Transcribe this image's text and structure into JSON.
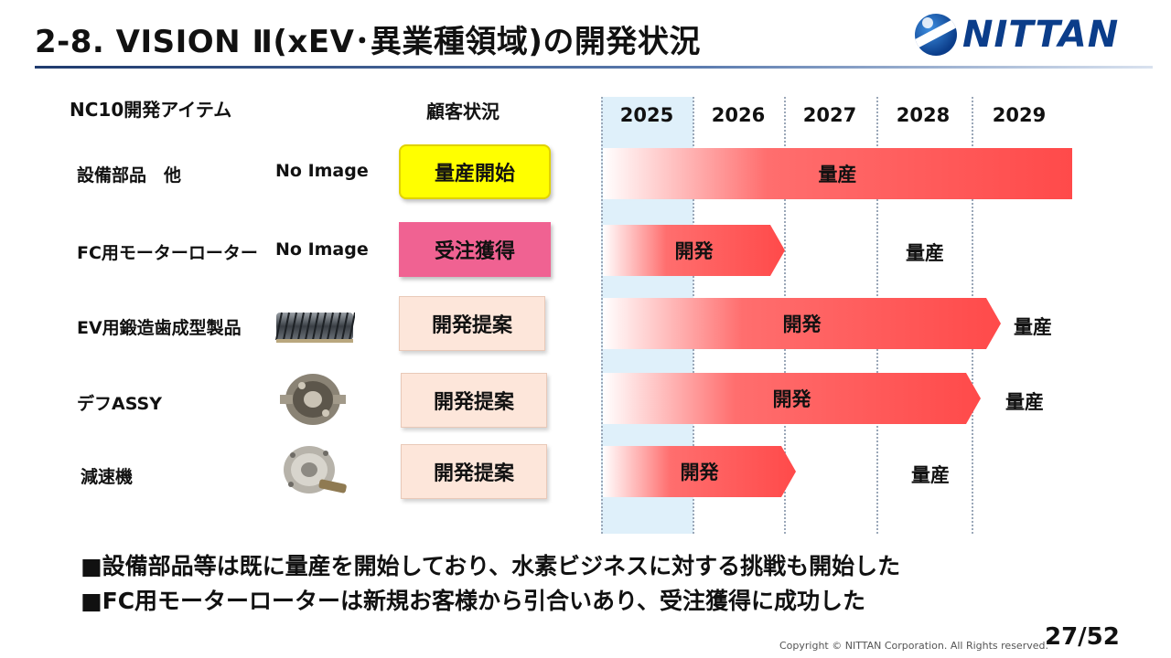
{
  "title": "2-8. VISION Ⅱ(xEV･異業種領域)の開発状況",
  "logo": {
    "text": "NITTAN"
  },
  "headers": {
    "items": "NC10開発アイテム",
    "status": "顧客状況"
  },
  "years": [
    "2025",
    "2026",
    "2027",
    "2028",
    "2029"
  ],
  "rows": [
    {
      "name": "設備部品　他",
      "image_text": "No Image",
      "status": "量産開始",
      "bar_label": "量産",
      "after_label": ""
    },
    {
      "name": "FC用モーターローター",
      "image_text": "No Image",
      "status": "受注獲得",
      "bar_label": "開発",
      "after_label": "量産"
    },
    {
      "name": "EV用鍛造歯成型製品",
      "image_text": "",
      "status": "開発提案",
      "bar_label": "開発",
      "after_label": "量産"
    },
    {
      "name": "デフASSY",
      "image_text": "",
      "status": "開発提案",
      "bar_label": "開発",
      "after_label": "量産"
    },
    {
      "name": "減速機",
      "image_text": "",
      "status": "開発提案",
      "bar_label": "開発",
      "after_label": "量産"
    }
  ],
  "bullets": [
    "■設備部品等は既に量産を開始しており、水素ビジネスに対する挑戦も開始した",
    "■FC用モーターローターは新規お客様から引合いあり、受注獲得に成功した"
  ],
  "footer": {
    "copyright": "Copyright © NITTAN Corporation. All Rights reserved.",
    "page": "27/52"
  },
  "colors": {
    "mass_production": "#ffff00",
    "order_won": "#f06292",
    "proposal": "#fde6da",
    "bar": "#ff4a4a",
    "highlight": "#dff0fa"
  }
}
